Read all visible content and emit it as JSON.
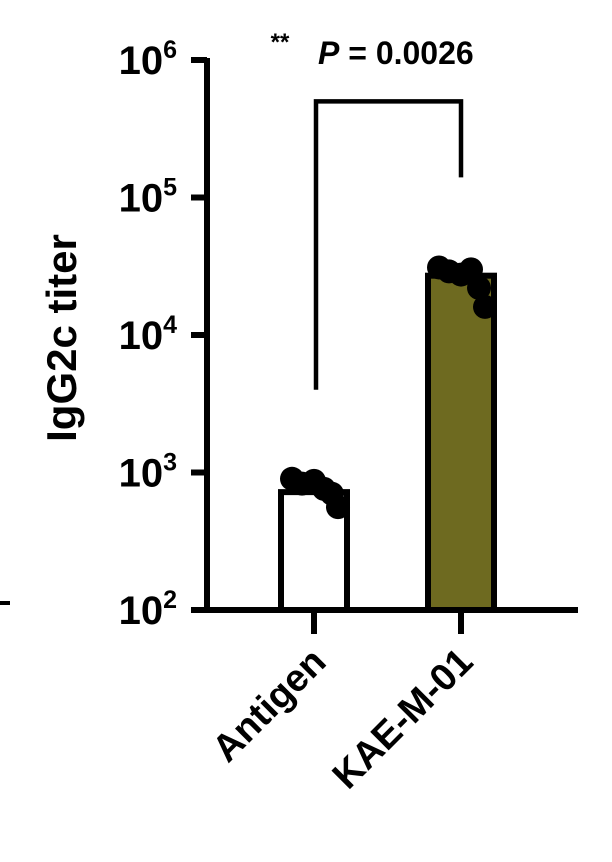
{
  "chart_data": {
    "type": "bar",
    "ylabel": "IgG2c titer",
    "xlabel": "",
    "yscale": "log",
    "ylim": [
      100,
      1000000
    ],
    "yticks": [
      {
        "value": 100,
        "base": "10",
        "exp": "2"
      },
      {
        "value": 1000,
        "base": "10",
        "exp": "3"
      },
      {
        "value": 10000,
        "base": "10",
        "exp": "4"
      },
      {
        "value": 100000,
        "base": "10",
        "exp": "5"
      },
      {
        "value": 1000000,
        "base": "10",
        "exp": "6"
      }
    ],
    "categories": [
      "Antigen",
      "KAE-M-01"
    ],
    "values": [
      720,
      27000
    ],
    "bar_colors": [
      "#ffffff",
      "#6e6a20"
    ],
    "points": [
      [
        900,
        830,
        870,
        760,
        700,
        560
      ],
      [
        31000,
        29000,
        27500,
        30000,
        22000,
        16000
      ]
    ],
    "significance": {
      "stars": "**",
      "p_prefix": "P",
      "p_text": " = 0.0026",
      "left_end": 4000,
      "right_end": 140000,
      "top": 500000
    }
  }
}
